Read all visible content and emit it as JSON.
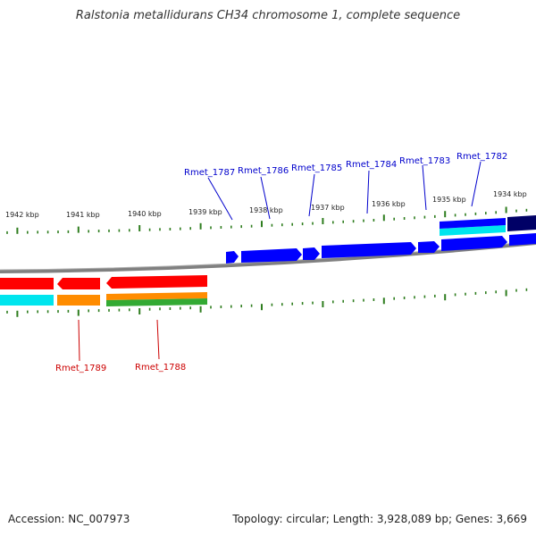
{
  "title": "Ralstonia metallidurans CH34 chromosome 1, complete sequence",
  "footer": {
    "accession": "Accession: NC_007973",
    "summary": "Topology: circular; Length: 3,928,089 bp; Genes: 3,669"
  },
  "kbp_labels": [
    "1942 kbp",
    "1941 kbp",
    "1940 kbp",
    "1939 kbp",
    "1938 kbp",
    "1937 kbp",
    "1936 kbp",
    "1935 kbp",
    "1934 kbp"
  ],
  "genes_forward": [
    "Rmet_1787",
    "Rmet_1786",
    "Rmet_1785",
    "Rmet_1784",
    "Rmet_1783",
    "Rmet_1782"
  ],
  "genes_reverse": [
    "Rmet_1789",
    "Rmet_1788"
  ],
  "colors": {
    "forward_cds": "#0000ff",
    "reverse_cds": "#ff0000",
    "forward_label": "#0000cc",
    "reverse_label": "#cc0000",
    "tick": "#2e7d1e",
    "backbone": "#808080",
    "feature_cyan": "#00e5ee",
    "feature_orange": "#ff8c00",
    "feature_green": "#33aa33",
    "feature_navy": "#000066"
  }
}
